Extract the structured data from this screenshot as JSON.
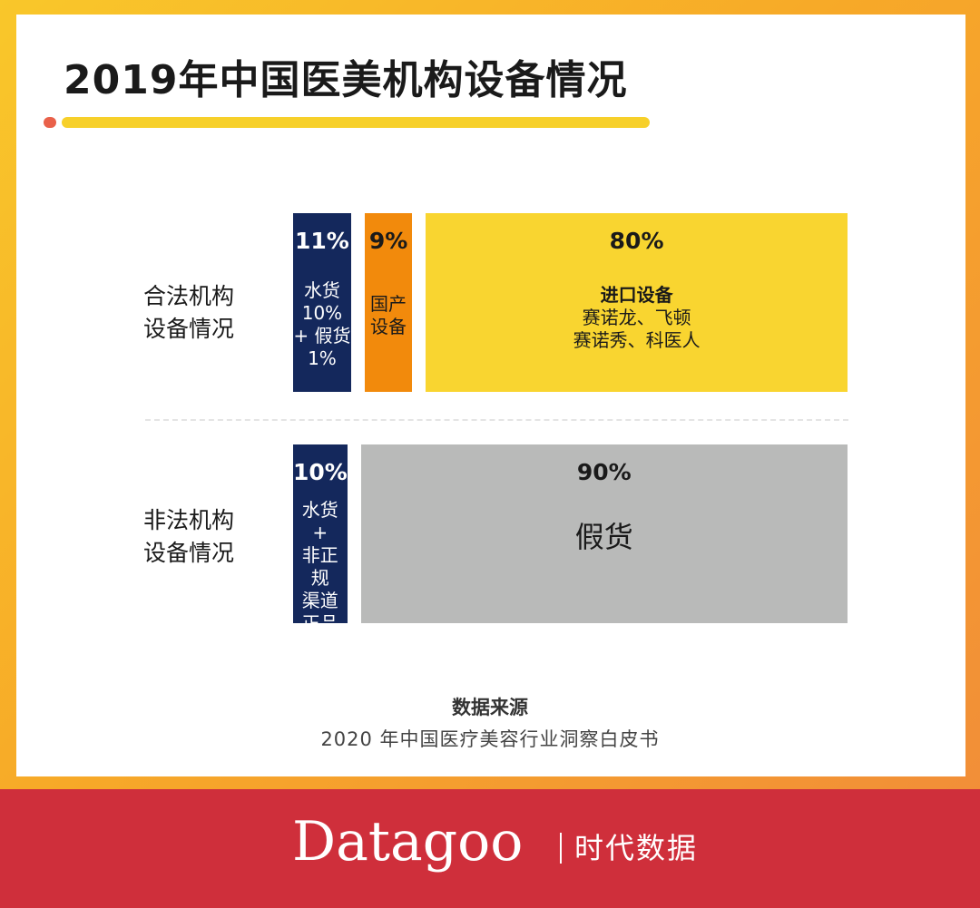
{
  "page": {
    "title": "2019年中国医美机构设备情况",
    "source_title": "数据来源",
    "source_text": "2020 年中国医疗美容行业洞察白皮书",
    "brand_name": "Datagoo",
    "brand_cn": "时代数据"
  },
  "colors": {
    "navy": "#14285c",
    "orange": "#f28a0c",
    "yellow": "#f9d530",
    "gray": "#b9bab9",
    "footer_red": "#cf2f3b",
    "accent_dot": "#e9614a",
    "underline_yellow": "#f7d02a"
  },
  "chart_data": {
    "type": "bar",
    "title": "2019年中国医美机构设备情况",
    "stacked": "horizontal-100-percent",
    "rows": [
      {
        "label_lines": [
          "合法机构",
          "设备情况"
        ],
        "segments": [
          {
            "value": 11,
            "pct_label": "11%",
            "desc_lines": [
              "水货",
              "10%",
              "+ 假货",
              "1%"
            ],
            "color": "navy",
            "text_color": "#ffffff"
          },
          {
            "value": 9,
            "pct_label": "9%",
            "desc_lines": [
              "国产",
              "设备"
            ],
            "color": "orange",
            "text_color": "#1a1a1a"
          },
          {
            "value": 80,
            "pct_label": "80%",
            "desc_lines": [
              "进口设备",
              "赛诺龙、飞顿",
              "赛诺秀、科医人"
            ],
            "desc_strong_first": true,
            "color": "yellow",
            "text_color": "#1a1a1a"
          }
        ]
      },
      {
        "label_lines": [
          "非法机构",
          "设备情况"
        ],
        "segments": [
          {
            "value": 10,
            "pct_label": "10%",
            "desc_lines": [
              "水货",
              "+",
              "非正规",
              "渠道",
              "正品"
            ],
            "color": "navy",
            "text_color": "#ffffff"
          },
          {
            "value": 90,
            "pct_label": "90%",
            "desc_lines": [
              "假货"
            ],
            "desc_big": true,
            "color": "gray",
            "text_color": "#1a1a1a"
          }
        ]
      }
    ]
  }
}
